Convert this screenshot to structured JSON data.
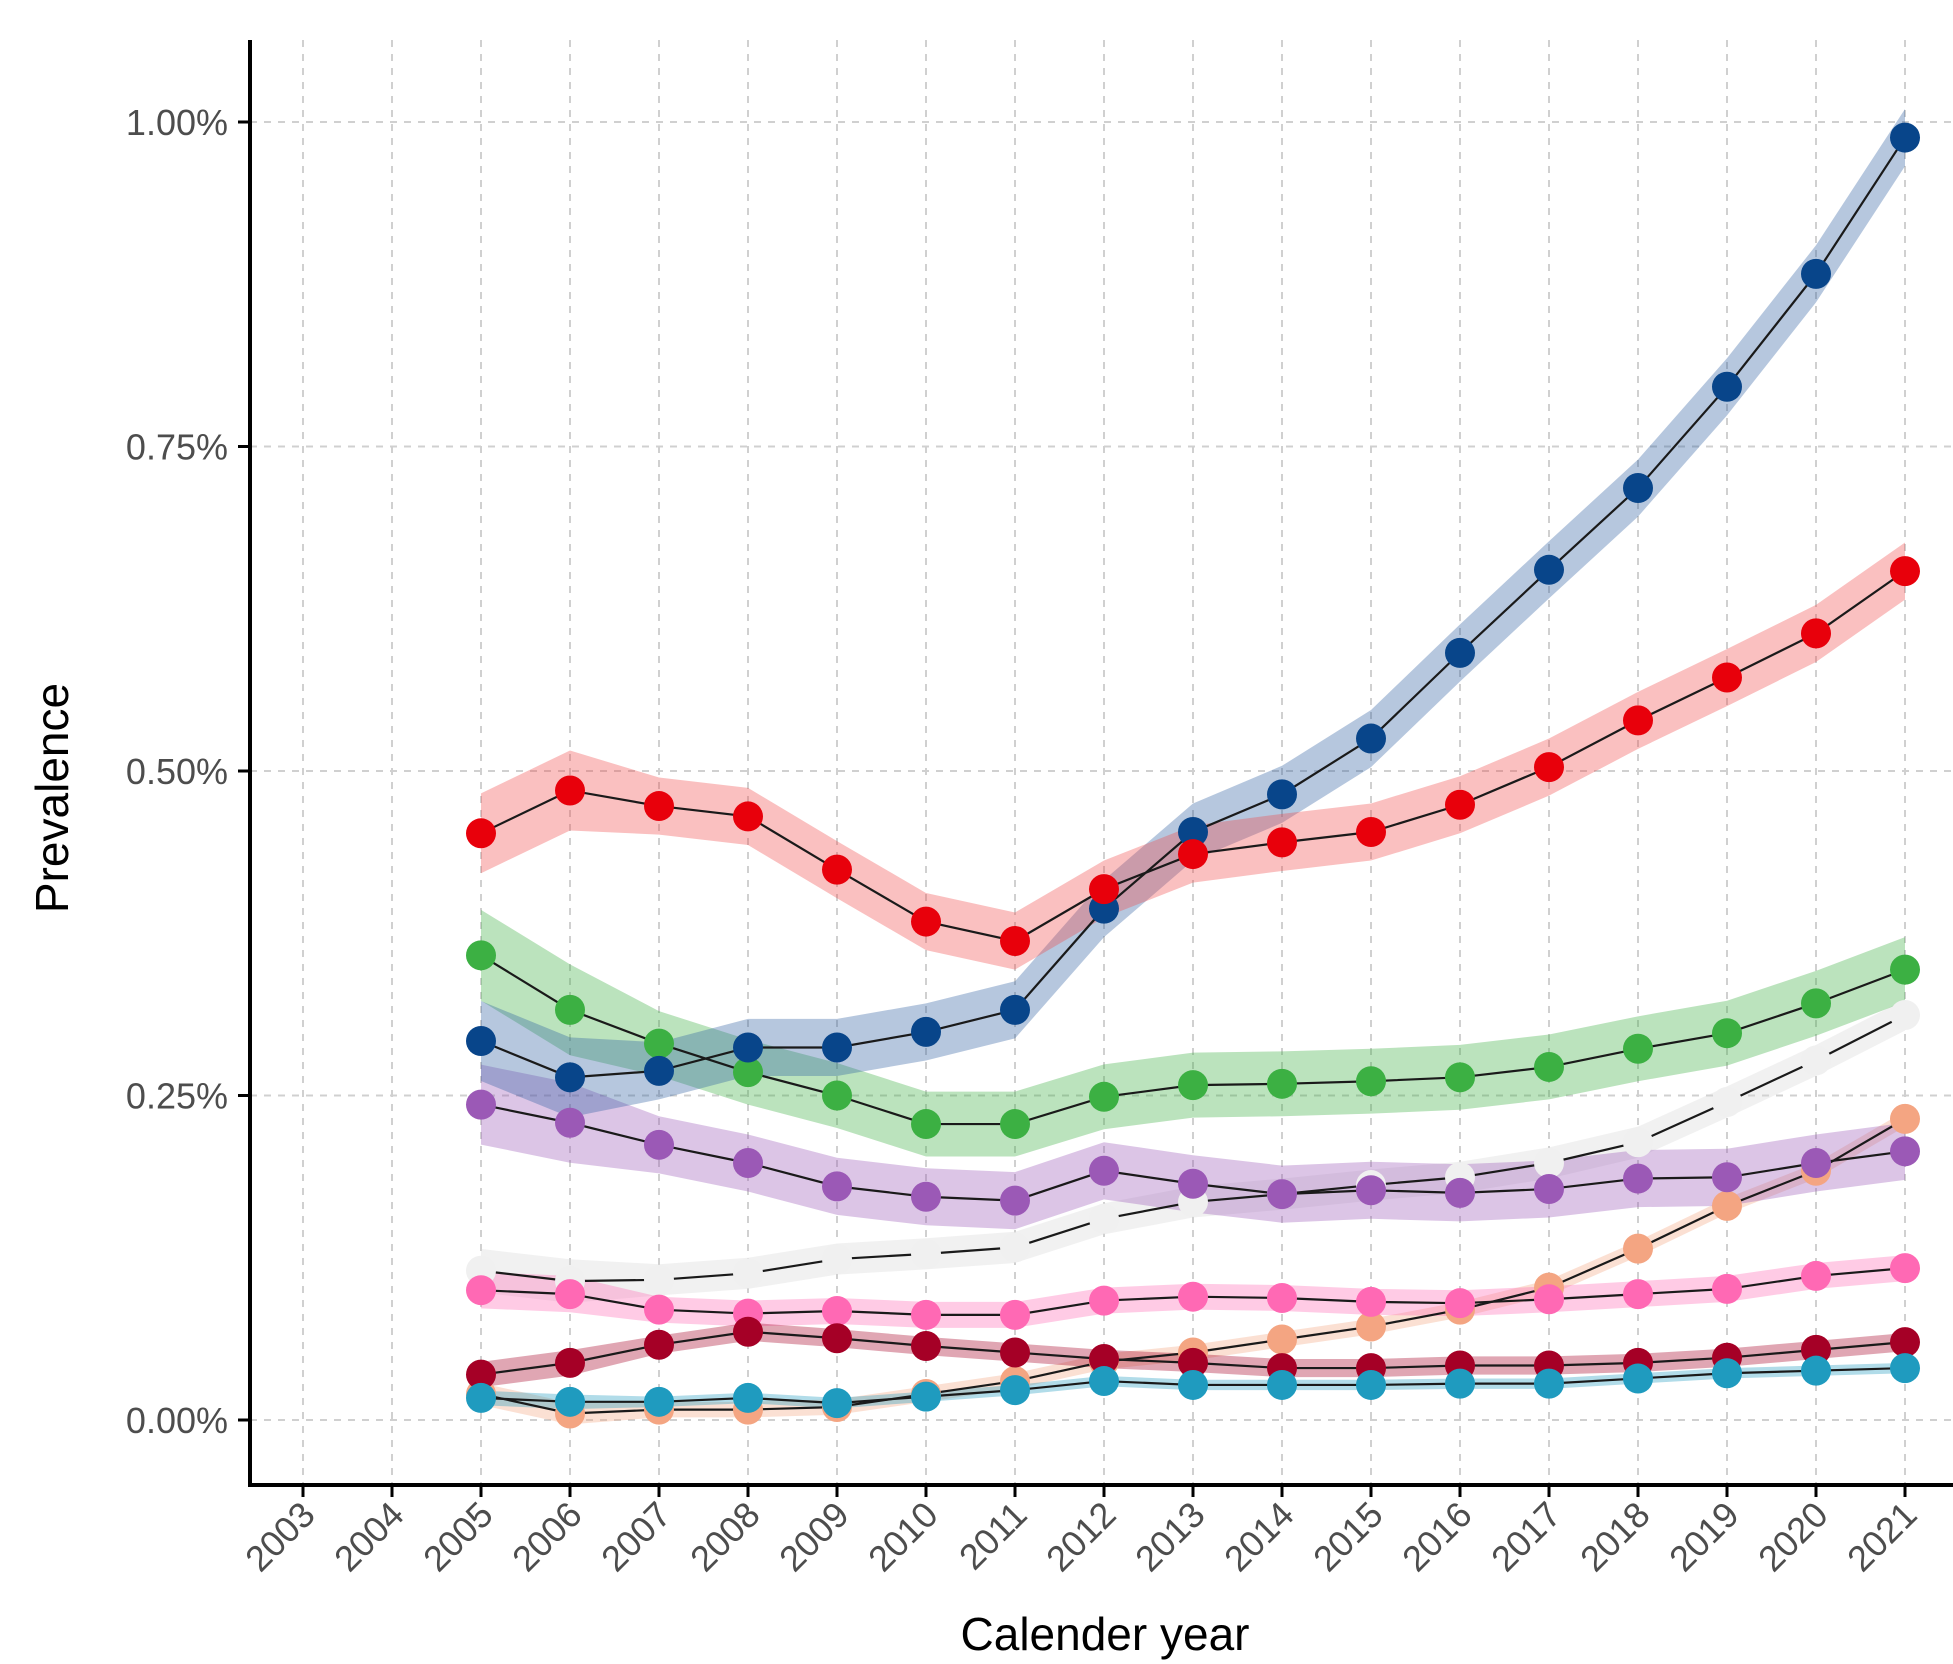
{
  "chart_data": {
    "type": "line",
    "xlabel": "Calender year",
    "ylabel": "Prevalence",
    "x_ticks": [
      "2003",
      "2004",
      "2005",
      "2006",
      "2007",
      "2008",
      "2009",
      "2010",
      "2011",
      "2012",
      "2013",
      "2014",
      "2015",
      "2016",
      "2017",
      "2018",
      "2019",
      "2020",
      "2021"
    ],
    "y_ticks": [
      0,
      0.25,
      0.5,
      0.75,
      1.0
    ],
    "y_tick_labels": [
      "0.00%",
      "0.25%",
      "0.50%",
      "0.75%",
      "1.00%"
    ],
    "xlim": [
      2002.2,
      2021.5
    ],
    "ylim": [
      -0.05,
      1.06
    ],
    "y_unit": "percent",
    "grid": true,
    "confidence_bands": true,
    "x": [
      2005,
      2006,
      2007,
      2008,
      2009,
      2010,
      2011,
      2012,
      2013,
      2014,
      2015,
      2016,
      2017,
      2018,
      2019,
      2020,
      2021
    ],
    "series": [
      {
        "color": "#f0f0f0",
        "band_color": "#d6d6d6",
        "values": [
          0.115,
          0.107,
          0.108,
          0.113,
          0.124,
          0.128,
          0.133,
          0.155,
          0.168,
          0.174,
          0.181,
          0.187,
          0.198,
          0.214,
          0.245,
          0.277,
          0.312
        ],
        "band": 0.012
      },
      {
        "color": "#f4a582",
        "band_color": "#f4a582",
        "values": [
          0.02,
          0.005,
          0.008,
          0.008,
          0.01,
          0.02,
          0.03,
          0.045,
          0.052,
          0.062,
          0.072,
          0.085,
          0.102,
          0.132,
          0.165,
          0.192,
          0.232
        ],
        "band": 0.006
      },
      {
        "color": "#ff69b4",
        "band_color": "#ff69b4",
        "values": [
          0.1,
          0.097,
          0.085,
          0.082,
          0.084,
          0.081,
          0.081,
          0.092,
          0.095,
          0.094,
          0.091,
          0.09,
          0.093,
          0.097,
          0.101,
          0.111,
          0.117
        ],
        "band": 0.01
      },
      {
        "color": "#a50026",
        "band_color": "#a50026",
        "values": [
          0.035,
          0.044,
          0.058,
          0.068,
          0.063,
          0.057,
          0.052,
          0.047,
          0.044,
          0.04,
          0.04,
          0.042,
          0.042,
          0.044,
          0.048,
          0.054,
          0.06
        ],
        "band": 0.007
      },
      {
        "color": "#1f9bbf",
        "band_color": "#1f9bbf",
        "values": [
          0.017,
          0.014,
          0.014,
          0.017,
          0.013,
          0.018,
          0.023,
          0.03,
          0.027,
          0.027,
          0.027,
          0.028,
          0.028,
          0.032,
          0.036,
          0.038,
          0.04
        ],
        "band": 0.004
      },
      {
        "color": "#9b59b6",
        "band_color": "#9b59b6",
        "values": [
          0.243,
          0.229,
          0.212,
          0.198,
          0.18,
          0.172,
          0.169,
          0.192,
          0.182,
          0.174,
          0.177,
          0.175,
          0.178,
          0.186,
          0.187,
          0.198,
          0.207
        ],
        "band": 0.022
      },
      {
        "color": "#3cb043",
        "band_color": "#3cb043",
        "values": [
          0.358,
          0.316,
          0.29,
          0.268,
          0.25,
          0.228,
          0.228,
          0.249,
          0.258,
          0.259,
          0.261,
          0.264,
          0.272,
          0.286,
          0.298,
          0.321,
          0.347
        ],
        "band": 0.025
      },
      {
        "color": "#08458a",
        "band_color": "#2f5fa0",
        "values": [
          0.292,
          0.264,
          0.269,
          0.287,
          0.287,
          0.299,
          0.316,
          0.394,
          0.453,
          0.482,
          0.525,
          0.591,
          0.655,
          0.718,
          0.796,
          0.883,
          0.988
        ],
        "band": 0.022
      },
      {
        "color": "#e8000b",
        "band_color": "#f04b4b",
        "values": [
          0.452,
          0.485,
          0.473,
          0.465,
          0.424,
          0.384,
          0.369,
          0.409,
          0.436,
          0.445,
          0.453,
          0.474,
          0.503,
          0.539,
          0.572,
          0.606,
          0.654
        ],
        "band": 0.022
      }
    ]
  }
}
